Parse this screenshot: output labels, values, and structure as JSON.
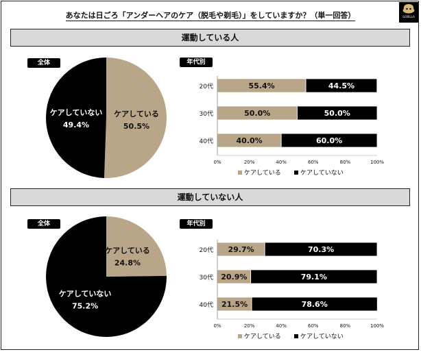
{
  "title": "あなたは日ごろ「アンダーヘアのケア（脱毛や剃毛）」をしていますか？（単一回答）",
  "logo": {
    "text": "GORILLA",
    "icon": "gorilla-logo-icon"
  },
  "colors": {
    "care": "#b9a588",
    "nocare": "#000000"
  },
  "chart_data": [
    {
      "section": "運動している人",
      "overall_label": "全体",
      "age_label": "年代別",
      "pie": {
        "type": "pie",
        "slices": [
          {
            "label": "ケアしている",
            "value": 50.5,
            "text": "50.5%"
          },
          {
            "label": "ケアしていない",
            "value": 49.4,
            "text": "49.4%"
          }
        ]
      },
      "bars": {
        "type": "bar",
        "categories": [
          "20代",
          "30代",
          "40代"
        ],
        "series": [
          {
            "name": "ケアしている",
            "values": [
              55.4,
              50.0,
              40.0
            ],
            "texts": [
              "55.4%",
              "50.0%",
              "40.0%"
            ]
          },
          {
            "name": "ケアしていない",
            "values": [
              44.5,
              50.0,
              60.0
            ],
            "texts": [
              "44.5%",
              "50.0%",
              "60.0%"
            ]
          }
        ],
        "xticks": [
          "0%",
          "20%",
          "40%",
          "60%",
          "80%",
          "100%"
        ],
        "xlim": [
          0,
          100
        ]
      }
    },
    {
      "section": "運動していない人",
      "overall_label": "全体",
      "age_label": "年代別",
      "pie": {
        "type": "pie",
        "slices": [
          {
            "label": "ケアしている",
            "value": 24.8,
            "text": "24.8%"
          },
          {
            "label": "ケアしていない",
            "value": 75.2,
            "text": "75.2%"
          }
        ]
      },
      "bars": {
        "type": "bar",
        "categories": [
          "20代",
          "30代",
          "40代"
        ],
        "series": [
          {
            "name": "ケアしている",
            "values": [
              29.7,
              20.9,
              21.5
            ],
            "texts": [
              "29.7%",
              "20.9%",
              "21.5%"
            ]
          },
          {
            "name": "ケアしていない",
            "values": [
              70.3,
              79.1,
              78.6
            ],
            "texts": [
              "70.3%",
              "79.1%",
              "78.6%"
            ]
          }
        ],
        "xticks": [
          "0%",
          "20%",
          "40%",
          "60%",
          "80%",
          "100%"
        ],
        "xlim": [
          0,
          100
        ]
      }
    }
  ]
}
